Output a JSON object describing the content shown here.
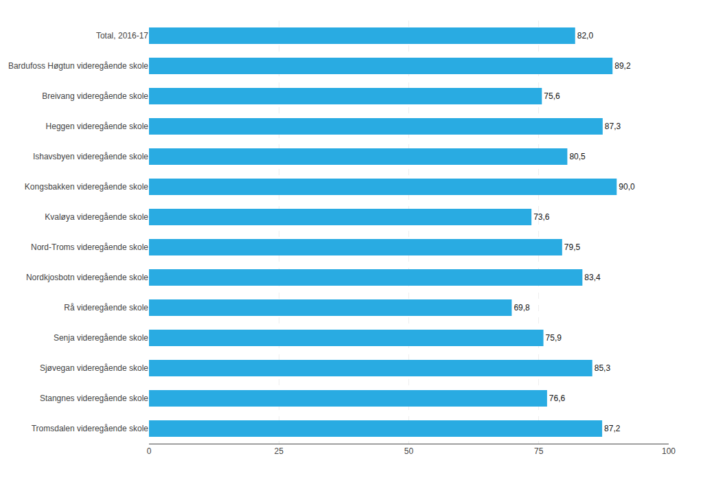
{
  "chart_data": {
    "type": "bar",
    "orientation": "horizontal",
    "categories": [
      "Total, 2016-17",
      "Bardufoss Høgtun videregående skole",
      "Breivang videregående skole",
      "Heggen videregående skole",
      "Ishavsbyen videregående skole",
      "Kongsbakken videregående skole",
      "Kvaløya videregående skole",
      "Nord-Troms videregående skole",
      "Nordkjosbotn videregående skole",
      "Rå videregående skole",
      "Senja videregående skole",
      "Sjøvegan videregående skole",
      "Stangnes videregående skole",
      "Tromsdalen videregående skole"
    ],
    "values": [
      82.0,
      89.2,
      75.6,
      87.3,
      80.5,
      90.0,
      73.6,
      79.5,
      83.4,
      69.8,
      75.9,
      85.3,
      76.6,
      87.2
    ],
    "value_labels": [
      "82,0",
      "89,2",
      "75,6",
      "87,3",
      "80,5",
      "90,0",
      "73,6",
      "79,5",
      "83,4",
      "69,8",
      "75,9",
      "85,3",
      "76,6",
      "87,2"
    ],
    "color": "#29ABE2",
    "xlim": [
      0,
      100
    ],
    "xticks": [
      0,
      25,
      50,
      75,
      100
    ],
    "grid": true,
    "data_labels": true
  }
}
